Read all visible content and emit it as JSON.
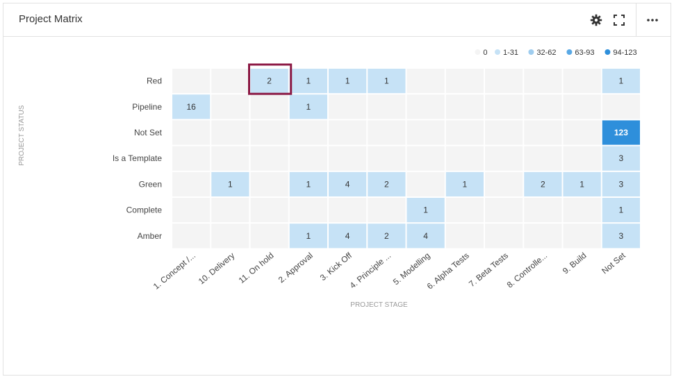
{
  "widget": {
    "title": "Project Matrix",
    "icons": {
      "settings": "gear-icon",
      "expand": "fullscreen-icon",
      "more": "more-ellipsis-icon"
    }
  },
  "colors": {
    "zero": "#f4f4f4",
    "bin1": "#c6e2f6",
    "bin2": "#9fcdef",
    "bin3": "#5aa9e5",
    "bin4": "#2e8fdb",
    "highlight": "#8c1a45",
    "axis_title": "#999999",
    "label": "#444444"
  },
  "chart_data": {
    "type": "heatmap",
    "xlabel": "PROJECT STAGE",
    "ylabel": "PROJECT STATUS",
    "x_categories": [
      "1. Concept /...",
      "10. Delivery",
      "11. On hold",
      "2. Approval",
      "3. Kick Off",
      "4. Principle ...",
      "5. Modelling",
      "6. Alpha Tests",
      "7. Beta Tests",
      "8. Controlle...",
      "9. Build",
      "Not Set"
    ],
    "y_categories": [
      "Red",
      "Pipeline",
      "Not Set",
      "Is a Template",
      "Green",
      "Complete",
      "Amber"
    ],
    "values": [
      [
        0,
        0,
        2,
        1,
        1,
        1,
        0,
        0,
        0,
        0,
        0,
        1
      ],
      [
        16,
        0,
        0,
        1,
        0,
        0,
        0,
        0,
        0,
        0,
        0,
        0
      ],
      [
        0,
        0,
        0,
        0,
        0,
        0,
        0,
        0,
        0,
        0,
        0,
        123
      ],
      [
        0,
        0,
        0,
        0,
        0,
        0,
        0,
        0,
        0,
        0,
        0,
        3
      ],
      [
        0,
        1,
        0,
        1,
        4,
        2,
        0,
        1,
        0,
        2,
        1,
        3
      ],
      [
        0,
        0,
        0,
        0,
        0,
        0,
        1,
        0,
        0,
        0,
        0,
        1
      ],
      [
        0,
        0,
        0,
        1,
        4,
        2,
        4,
        0,
        0,
        0,
        0,
        3
      ]
    ],
    "legend": [
      {
        "label": "0",
        "min": 0,
        "max": 0
      },
      {
        "label": "1-31",
        "min": 1,
        "max": 31
      },
      {
        "label": "32-62",
        "min": 32,
        "max": 62
      },
      {
        "label": "63-93",
        "min": 63,
        "max": 93
      },
      {
        "label": "94-123",
        "min": 94,
        "max": 123
      }
    ],
    "legend_position": "top-right",
    "highlighted_cell": {
      "row": "Red",
      "column": "11. On hold",
      "value": 2
    }
  }
}
